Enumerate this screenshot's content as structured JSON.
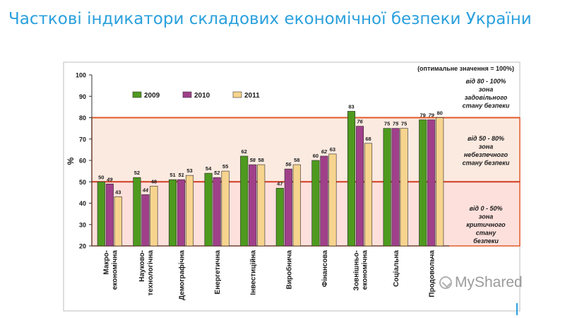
{
  "slide": {
    "title": "Часткові індикатори складових економічної безпеки України"
  },
  "watermark": {
    "text": "MyShared"
  },
  "colors": {
    "s2009": "#4e9a1e",
    "s2010": "#a0408a",
    "s2011": "#f7d48e",
    "zone_line": "#e05a2a",
    "zone_fill_danger": "#fbeae0",
    "zone_fill_critical": "#fde0dc",
    "title": "#2aa0dd"
  },
  "chart_data": {
    "type": "bar",
    "title": "",
    "xlabel": "",
    "ylabel": "%",
    "ylim": [
      20,
      100
    ],
    "yticks": [
      20,
      30,
      40,
      50,
      60,
      70,
      80,
      90,
      100
    ],
    "grid": false,
    "legend_position": "top-left",
    "note": "(оптимальне значення = 100%)",
    "categories": [
      [
        "Макро-",
        "економічна"
      ],
      [
        "Науково-",
        "технологічна"
      ],
      [
        "Демографічна"
      ],
      [
        "Енергетична"
      ],
      [
        "Інвестиційна"
      ],
      [
        "Виробнича"
      ],
      [
        "Фінансова"
      ],
      [
        "Зовнішньо-",
        "економічна"
      ],
      [
        "Соціальна"
      ],
      [
        "Продовольча"
      ]
    ],
    "series": [
      {
        "name": "2009",
        "values": [
          50,
          52,
          51,
          54,
          62,
          47,
          60,
          83,
          75,
          79
        ]
      },
      {
        "name": "2010",
        "values": [
          49,
          44,
          51,
          52,
          58,
          56,
          62,
          76,
          75,
          79
        ]
      },
      {
        "name": "2011",
        "values": [
          43,
          48,
          53,
          55,
          58,
          58,
          63,
          68,
          75,
          80
        ]
      }
    ],
    "zones": [
      {
        "from": 80,
        "to": 100,
        "label": [
          "від 80 - 100%",
          "зона",
          "задовільного",
          "стану безпеки"
        ]
      },
      {
        "from": 50,
        "to": 80,
        "label": [
          "від 50 - 80%",
          "зона",
          "небезпечного",
          "стану безпеки"
        ]
      },
      {
        "from": 0,
        "to": 50,
        "label": [
          "від 0 - 50%",
          "зона",
          "критичного",
          "стану",
          "безпеки"
        ]
      }
    ]
  }
}
